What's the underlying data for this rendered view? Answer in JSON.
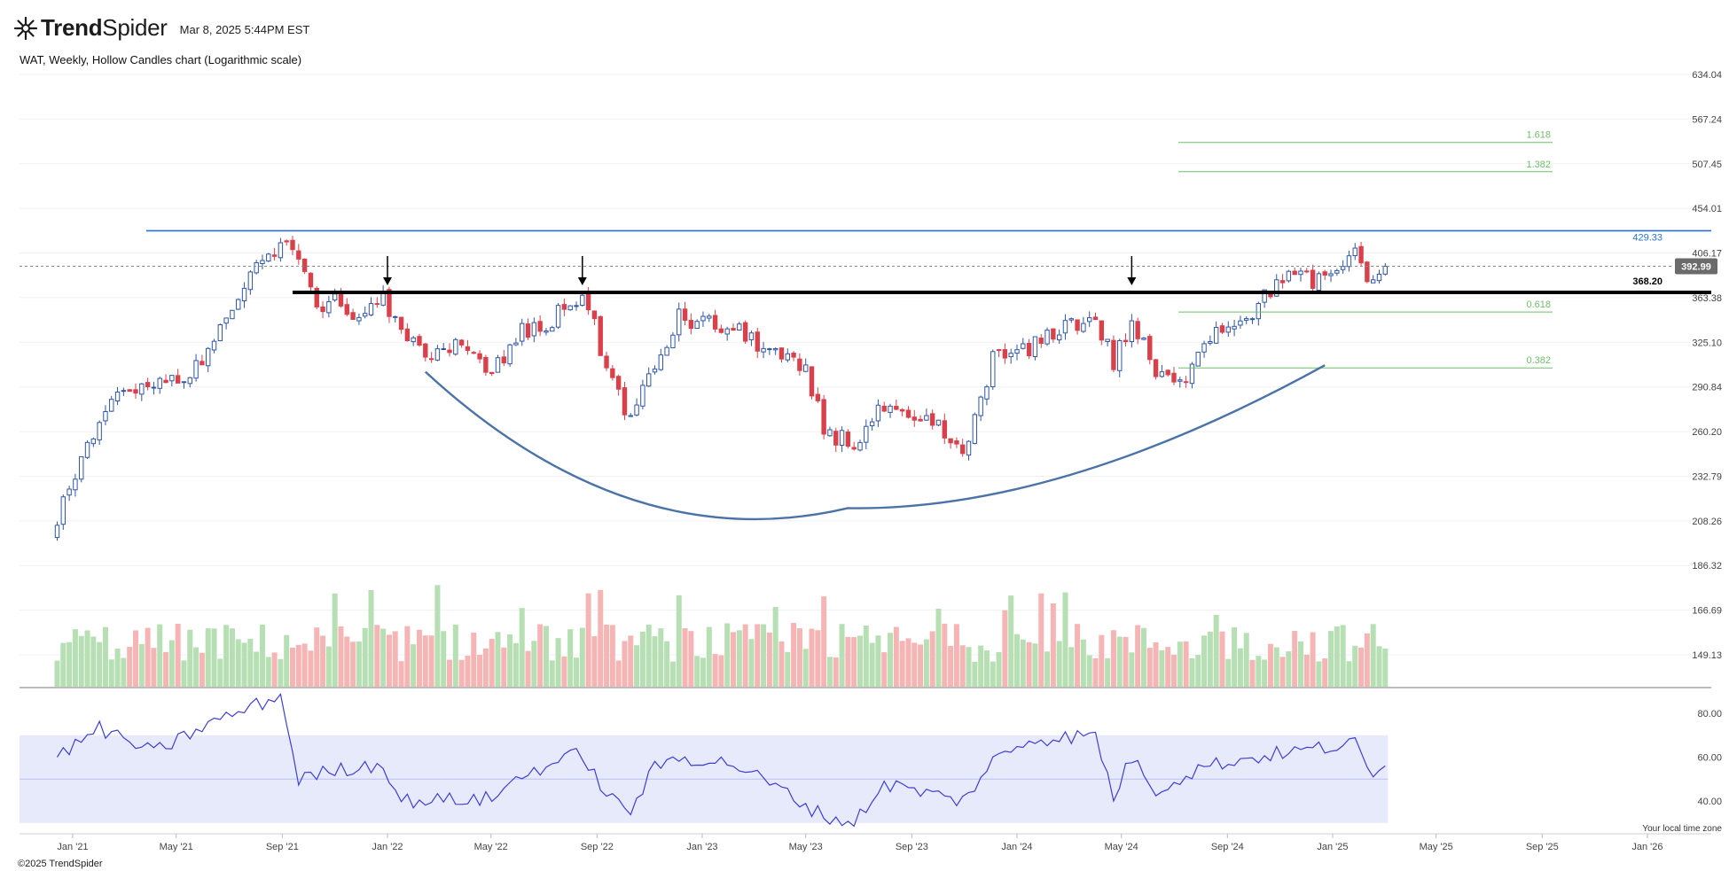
{
  "app": {
    "brand_bold": "Trend",
    "brand_light": "Spider",
    "timestamp": "Mar 8, 2025 5:44PM EST",
    "copyright": "©2025 TrendSpider",
    "timezone_note": "Your local time zone"
  },
  "chart_data": {
    "type": "candlestick",
    "title": "WAT, Weekly, Hollow Candles chart (Logarithmic scale)",
    "symbol": "WAT",
    "interval": "Weekly",
    "scale": "log",
    "colors": {
      "up": "#2f56a6",
      "down": "#d9404a",
      "vol_up": "#b7dfb4",
      "vol_down": "#f6b5b5",
      "rsi": "#3d3fd0",
      "rsi_band": "#e7eafb",
      "fib": "#6fbf6a",
      "resistance": "#2a6fd6",
      "support": "#000000"
    },
    "y_ticks": [
      "634.04",
      "567.24",
      "507.45",
      "454.01",
      "406.17",
      "363.38",
      "325.10",
      "290.84",
      "260.20",
      "232.79",
      "208.26",
      "186.32",
      "166.69",
      "149.13"
    ],
    "x_ticks": [
      "Jan '21",
      "May '21",
      "Sep '21",
      "Jan '22",
      "May '22",
      "Sep '22",
      "Jan '23",
      "May '23",
      "Sep '23",
      "Jan '24",
      "May '24",
      "Sep '24",
      "Jan '25",
      "May '25",
      "Sep '25",
      "Jan '26"
    ],
    "last_price": "392.99",
    "annotations": {
      "resistance_label": "429.33",
      "support_label": "368.20",
      "fib_levels": [
        {
          "label": "1.618",
          "value": 535.2
        },
        {
          "label": "1.382",
          "value": 497.5
        },
        {
          "label": "0.618",
          "value": 350.6
        },
        {
          "label": "0.382",
          "value": 305.0
        }
      ],
      "arrows": [
        "Jan '22",
        "Aug '22",
        "May '24"
      ],
      "rounding_bottom": true
    },
    "price_anchors": [
      [
        "2020-12-14",
        206
      ],
      [
        "2021-01-04",
        237
      ],
      [
        "2021-02-01",
        262
      ],
      [
        "2021-03-01",
        290
      ],
      [
        "2021-04-05",
        293
      ],
      [
        "2021-05-03",
        297
      ],
      [
        "2021-06-07",
        316
      ],
      [
        "2021-07-05",
        358
      ],
      [
        "2021-08-02",
        392
      ],
      [
        "2021-08-30",
        414
      ],
      [
        "2021-09-20",
        398
      ],
      [
        "2021-10-11",
        348
      ],
      [
        "2021-11-01",
        363
      ],
      [
        "2021-12-06",
        343
      ],
      [
        "2021-12-27",
        365
      ],
      [
        "2022-01-17",
        328
      ],
      [
        "2022-02-21",
        318
      ],
      [
        "2022-03-21",
        322
      ],
      [
        "2022-04-11",
        312
      ],
      [
        "2022-05-02",
        300
      ],
      [
        "2022-06-06",
        333
      ],
      [
        "2022-07-04",
        338
      ],
      [
        "2022-08-15",
        368
      ],
      [
        "2022-09-12",
        305
      ],
      [
        "2022-10-10",
        268
      ],
      [
        "2022-11-07",
        305
      ],
      [
        "2022-12-05",
        345
      ],
      [
        "2023-01-09",
        340
      ],
      [
        "2023-02-06",
        335
      ],
      [
        "2023-03-06",
        325
      ],
      [
        "2023-04-03",
        312
      ],
      [
        "2023-05-01",
        300
      ],
      [
        "2023-05-22",
        262
      ],
      [
        "2023-06-26",
        252
      ],
      [
        "2023-07-31",
        276
      ],
      [
        "2023-08-28",
        265
      ],
      [
        "2023-10-02",
        264
      ],
      [
        "2023-10-30",
        242
      ],
      [
        "2023-12-04",
        312
      ],
      [
        "2024-01-15",
        318
      ],
      [
        "2024-02-19",
        338
      ],
      [
        "2024-04-01",
        345
      ],
      [
        "2024-04-22",
        309
      ],
      [
        "2024-05-13",
        342
      ],
      [
        "2024-06-10",
        300
      ],
      [
        "2024-07-08",
        291
      ],
      [
        "2024-08-05",
        330
      ],
      [
        "2024-09-02",
        340
      ],
      [
        "2024-10-07",
        355
      ],
      [
        "2024-11-04",
        385
      ],
      [
        "2024-12-02",
        380
      ],
      [
        "2024-12-30",
        378
      ],
      [
        "2025-01-27",
        410
      ],
      [
        "2025-02-17",
        372
      ],
      [
        "2025-03-03",
        393
      ]
    ],
    "rsi": {
      "ticks": [
        "80.00",
        "60.00",
        "40.00"
      ],
      "band": [
        30,
        70
      ],
      "anchors": [
        [
          "2020-12-14",
          60
        ],
        [
          "2021-02-01",
          73
        ],
        [
          "2021-04-05",
          62
        ],
        [
          "2021-06-07",
          75
        ],
        [
          "2021-08-30",
          88
        ],
        [
          "2021-09-20",
          50
        ],
        [
          "2021-11-01",
          54
        ],
        [
          "2021-12-27",
          57
        ],
        [
          "2022-01-17",
          40
        ],
        [
          "2022-05-02",
          41
        ],
        [
          "2022-06-06",
          52
        ],
        [
          "2022-08-15",
          62
        ],
        [
          "2022-09-12",
          42
        ],
        [
          "2022-10-10",
          36
        ],
        [
          "2022-11-07",
          55
        ],
        [
          "2022-12-05",
          60
        ],
        [
          "2023-02-06",
          57
        ],
        [
          "2023-04-03",
          45
        ],
        [
          "2023-05-22",
          33
        ],
        [
          "2023-06-26",
          30
        ],
        [
          "2023-07-31",
          48
        ],
        [
          "2023-10-30",
          40
        ],
        [
          "2023-12-04",
          58
        ],
        [
          "2024-01-15",
          68
        ],
        [
          "2024-04-01",
          70
        ],
        [
          "2024-04-22",
          42
        ],
        [
          "2024-05-13",
          60
        ],
        [
          "2024-06-10",
          45
        ],
        [
          "2024-08-05",
          56
        ],
        [
          "2024-11-04",
          62
        ],
        [
          "2025-01-27",
          66
        ],
        [
          "2025-02-17",
          50
        ],
        [
          "2025-03-03",
          56
        ]
      ]
    }
  }
}
